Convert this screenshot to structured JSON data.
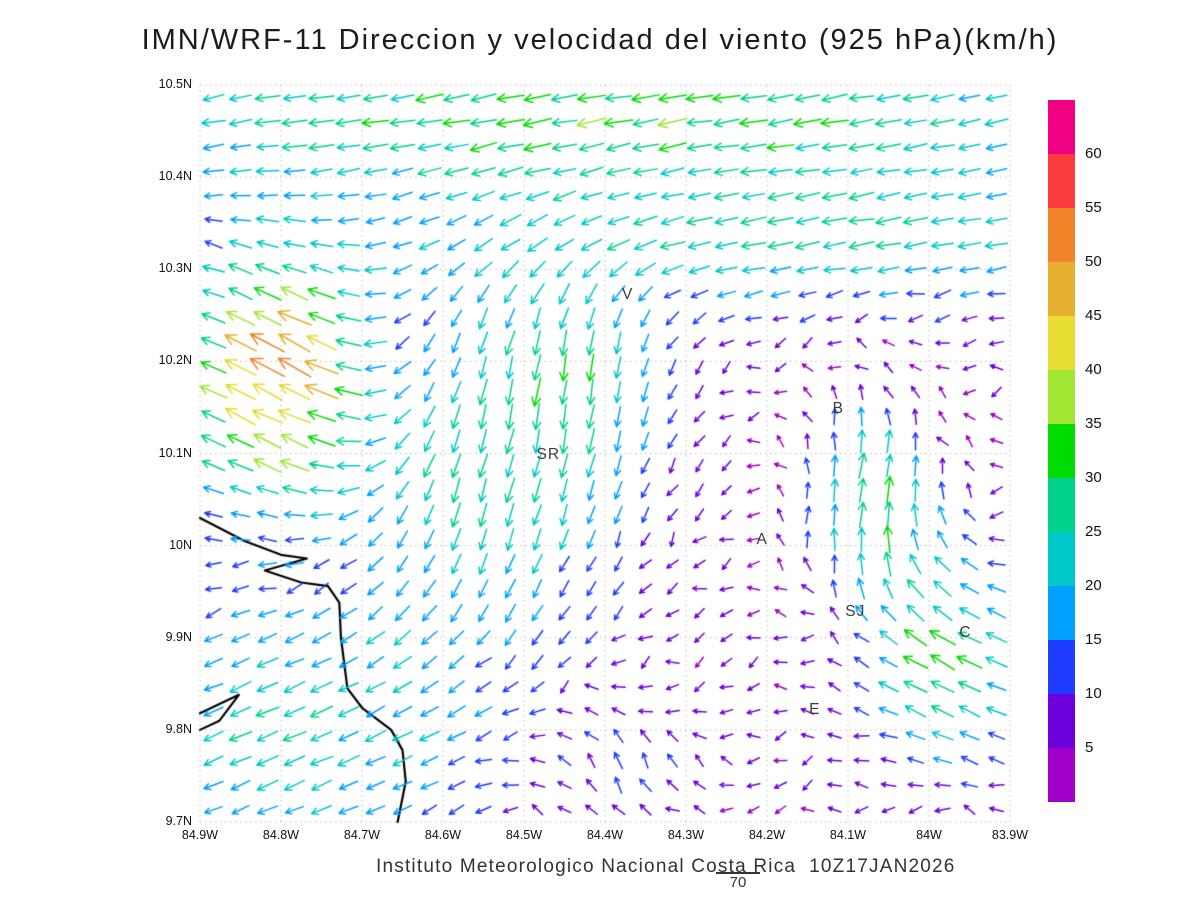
{
  "title": "IMN/WRF-11 Direccion y velocidad del viento (925 hPa)(km/h)",
  "footer": {
    "text": "Instituto Meteorologico Nacional Costa Rica  10Z17JAN2026",
    "extra": "70"
  },
  "chart_data": {
    "type": "vector_field",
    "title": "IMN/WRF-11 Direccion y velocidad del viento (925 hPa)(km/h)",
    "model": "IMN/WRF-11",
    "variable": "Direccion y velocidad del viento",
    "pressure_level": "925 hPa",
    "units": "km/h",
    "valid_time": "10Z17JAN2026",
    "source": "Instituto Meteorologico Nacional Costa Rica",
    "xlabel": "",
    "ylabel": "",
    "gridlines": true,
    "legend_position": "right",
    "lon_range": [
      84.9,
      83.9
    ],
    "lat_range": [
      9.7,
      10.5
    ],
    "grid": {
      "nx": 30,
      "ny": 30
    },
    "x_ticks": {
      "values": [
        84.9,
        84.8,
        84.7,
        84.6,
        84.5,
        84.4,
        84.3,
        84.2,
        84.1,
        84.0,
        83.9
      ],
      "labels": [
        "84.9W",
        "84.8W",
        "84.7W",
        "84.6W",
        "84.5W",
        "84.4W",
        "84.3W",
        "84.2W",
        "84.1W",
        "84W",
        "83.9W"
      ]
    },
    "y_ticks": {
      "values": [
        10.5,
        10.4,
        10.3,
        10.2,
        10.1,
        10.0,
        9.9,
        9.8,
        9.7
      ],
      "labels": [
        "10.5N",
        "10.4N",
        "10.3N",
        "10.2N",
        "10.1N",
        "10N",
        "9.9N",
        "9.8N",
        "9.7N"
      ]
    },
    "colorbar": {
      "levels": [
        5,
        10,
        15,
        20,
        25,
        30,
        35,
        40,
        45,
        50,
        55,
        60
      ],
      "colors_low_to_high": [
        "#A000C8",
        "#6E00DC",
        "#1E3CFF",
        "#00A0FF",
        "#00C8C8",
        "#00D28C",
        "#00DC00",
        "#A0E632",
        "#E6DC32",
        "#E6AF2D",
        "#F08228",
        "#FA3C3C",
        "#F00082"
      ],
      "labels_top_down": [
        "60",
        "55",
        "50",
        "45",
        "40",
        "35",
        "30",
        "25",
        "20",
        "15",
        "10",
        "5"
      ]
    },
    "stations": [
      {
        "label": "V",
        "lon": 84.372,
        "lat": 10.272
      },
      {
        "label": "B",
        "lon": 84.112,
        "lat": 10.148
      },
      {
        "label": "SR",
        "lon": 84.47,
        "lat": 10.098
      },
      {
        "label": "A",
        "lon": 84.206,
        "lat": 10.006
      },
      {
        "label": "SJ",
        "lon": 84.091,
        "lat": 9.928
      },
      {
        "label": "C",
        "lon": 83.955,
        "lat": 9.905
      },
      {
        "label": "E",
        "lon": 84.141,
        "lat": 9.822
      }
    ],
    "coastline": [
      [
        [
          84.9,
          10.03
        ],
        [
          84.845,
          10.005
        ],
        [
          84.8,
          9.99
        ],
        [
          84.768,
          9.986
        ],
        [
          84.82,
          9.973
        ],
        [
          84.775,
          9.96
        ],
        [
          84.742,
          9.956
        ],
        [
          84.728,
          9.938
        ],
        [
          84.726,
          9.9
        ],
        [
          84.718,
          9.845
        ],
        [
          84.7,
          9.824
        ],
        [
          84.664,
          9.8
        ],
        [
          84.65,
          9.778
        ],
        [
          84.646,
          9.744
        ],
        [
          84.656,
          9.7
        ]
      ],
      [
        [
          84.9,
          9.818
        ],
        [
          84.852,
          9.838
        ],
        [
          84.876,
          9.81
        ],
        [
          84.9,
          9.8
        ]
      ]
    ],
    "wind_field": {
      "background": {
        "u": -5,
        "v": -2
      },
      "patches": [
        {
          "name": "top-easterlies",
          "c": [
            84.4,
            10.47
          ],
          "r": [
            0.7,
            0.09
          ],
          "u": -26,
          "v": -3
        },
        {
          "name": "upper-easterlies",
          "c": [
            84.15,
            10.33
          ],
          "r": [
            0.5,
            0.07
          ],
          "u": -18,
          "v": -2
        },
        {
          "name": "northwest-jet",
          "c": [
            84.8,
            10.18
          ],
          "r": [
            0.12,
            0.14
          ],
          "u": -40,
          "v": 28
        },
        {
          "name": "central-northerlies",
          "c": [
            84.55,
            10.1
          ],
          "r": [
            0.18,
            0.2
          ],
          "u": -2,
          "v": -24
        },
        {
          "name": "inner-northerlies",
          "c": [
            84.42,
            10.2
          ],
          "r": [
            0.1,
            0.12
          ],
          "u": 2,
          "v": -14
        },
        {
          "name": "southwest-flow",
          "c": [
            84.78,
            9.8
          ],
          "r": [
            0.25,
            0.15
          ],
          "u": -17,
          "v": -7
        },
        {
          "name": "southeast-upslope",
          "c": [
            83.98,
            9.88
          ],
          "r": [
            0.1,
            0.12
          ],
          "u": -22,
          "v": 16
        },
        {
          "name": "valley-jet",
          "c": [
            84.07,
            10.05
          ],
          "r": [
            0.09,
            0.11
          ],
          "u": 10,
          "v": 32
        },
        {
          "name": "south-central-southerlies",
          "c": [
            84.38,
            9.76
          ],
          "r": [
            0.12,
            0.08
          ],
          "u": 0,
          "v": 14
        }
      ]
    }
  }
}
